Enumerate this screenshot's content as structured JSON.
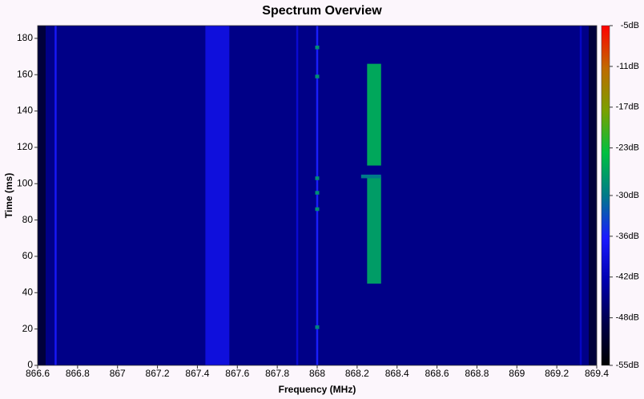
{
  "chart_data": {
    "type": "heatmap",
    "title": "Spectrum Overview",
    "x_label": "Frequency (MHz)",
    "y_label": "Time (ms)",
    "xlim": [
      866.6,
      869.4
    ],
    "ylim": [
      0,
      187
    ],
    "xticks": [
      866.6,
      866.8,
      867,
      867.2,
      867.4,
      867.6,
      867.8,
      868,
      868.2,
      868.4,
      868.6,
      868.8,
      869,
      869.2,
      869.4
    ],
    "yticks": [
      0,
      20,
      40,
      60,
      80,
      100,
      120,
      140,
      160,
      180
    ],
    "clim": [
      -55,
      -5
    ],
    "cticks": [
      {
        "value": -5,
        "label": "-5dB"
      },
      {
        "value": -11,
        "label": "-11dB"
      },
      {
        "value": -17,
        "label": "-17dB"
      },
      {
        "value": -23,
        "label": "-23dB"
      },
      {
        "value": -30,
        "label": "-30dB"
      },
      {
        "value": -36,
        "label": "-36dB"
      },
      {
        "value": -42,
        "label": "-42dB"
      },
      {
        "value": -48,
        "label": "-48dB"
      },
      {
        "value": -55,
        "label": "-55dB"
      }
    ],
    "colormap": [
      "#000000",
      "#00004a",
      "#0000b0",
      "#1a1aff",
      "#007a8a",
      "#00c040",
      "#7aa000",
      "#c06a00",
      "#ff0000"
    ],
    "regions": [
      {
        "x": [
          866.6,
          869.4
        ],
        "y": [
          0,
          187
        ],
        "value": -45
      },
      {
        "x": [
          866.6,
          866.64
        ],
        "y": [
          0,
          187
        ],
        "value": -50
      },
      {
        "x": [
          869.36,
          869.4
        ],
        "y": [
          0,
          187
        ],
        "value": -50
      },
      {
        "x": [
          866.685,
          866.695
        ],
        "y": [
          0,
          187
        ],
        "value": -37
      },
      {
        "x": [
          867.44,
          867.56
        ],
        "y": [
          0,
          187
        ],
        "value": -39
      },
      {
        "x": [
          867.895,
          867.905
        ],
        "y": [
          0,
          187
        ],
        "value": -40
      },
      {
        "x": [
          867.995,
          868.005
        ],
        "y": [
          0,
          187
        ],
        "value": -36
      },
      {
        "x": [
          869.315,
          869.325
        ],
        "y": [
          0,
          187
        ],
        "value": -41
      },
      {
        "x": [
          868.25,
          868.32
        ],
        "y": [
          110,
          166
        ],
        "value": -26
      },
      {
        "x": [
          868.25,
          868.32
        ],
        "y": [
          45,
          104
        ],
        "value": -27
      },
      {
        "x": [
          868.22,
          868.32
        ],
        "y": [
          103,
          105
        ],
        "value": -30
      },
      {
        "x": [
          867.99,
          868.01
        ],
        "y": [
          174,
          176
        ],
        "value": -28
      },
      {
        "x": [
          867.99,
          868.01
        ],
        "y": [
          158,
          160
        ],
        "value": -28
      },
      {
        "x": [
          867.99,
          868.01
        ],
        "y": [
          102,
          104
        ],
        "value": -28
      },
      {
        "x": [
          867.99,
          868.01
        ],
        "y": [
          94,
          96
        ],
        "value": -28
      },
      {
        "x": [
          867.99,
          868.01
        ],
        "y": [
          85,
          87
        ],
        "value": -28
      },
      {
        "x": [
          867.99,
          868.01
        ],
        "y": [
          20,
          22
        ],
        "value": -29
      }
    ]
  }
}
